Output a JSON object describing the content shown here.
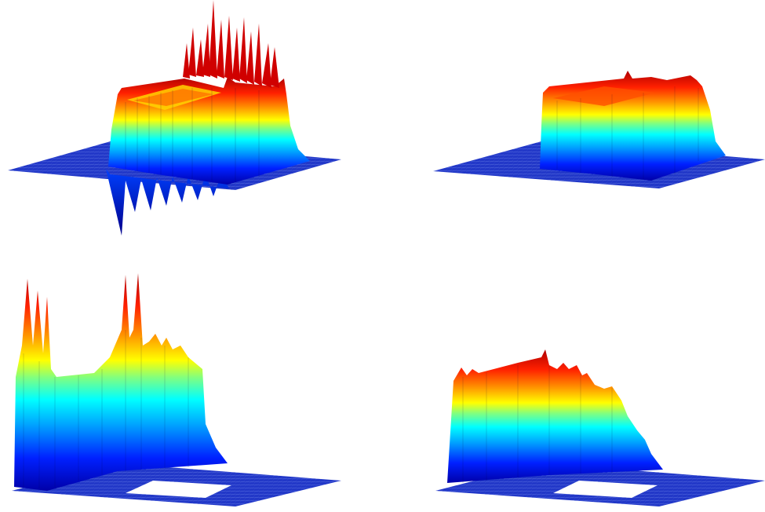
{
  "figure": {
    "description_hidden": "",
    "colormap": [
      "#00008f",
      "#0000ff",
      "#0080ff",
      "#00ffff",
      "#80ff80",
      "#ffff00",
      "#ff8000",
      "#ff0000",
      "#800000"
    ],
    "floor_color": "#1a2fbf",
    "panels": [
      {
        "id": "top-left",
        "shape": "box-with-spikes-up-and-down"
      },
      {
        "id": "top-right",
        "shape": "box-smooth"
      },
      {
        "id": "bottom-left",
        "shape": "cut-section-spiky"
      },
      {
        "id": "bottom-right",
        "shape": "cut-section-smooth"
      }
    ]
  }
}
